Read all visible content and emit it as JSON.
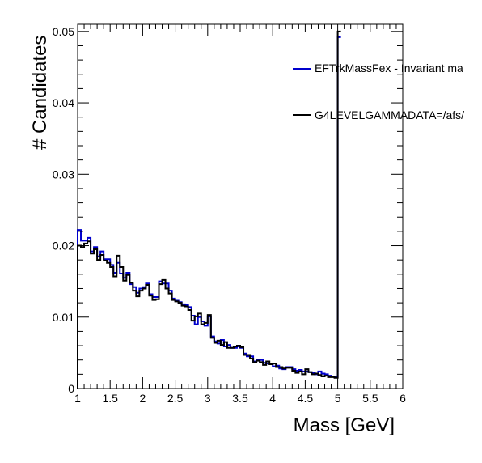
{
  "chart_data": {
    "type": "histogram-step",
    "xlabel": "Mass [GeV]",
    "ylabel": "# Candidates",
    "xlim": [
      1,
      6
    ],
    "ylim": [
      0,
      0.051
    ],
    "x_ticks": [
      "1",
      "1.5",
      "2",
      "2.5",
      "3",
      "3.5",
      "4",
      "4.5",
      "5",
      "5.5",
      "6"
    ],
    "y_ticks": [
      "0",
      "0.01",
      "0.02",
      "0.03",
      "0.04",
      "0.05"
    ],
    "bin_width": 0.05,
    "legend": [
      {
        "label": "EFTrkMassFex - Invariant ma",
        "color": "#0000cc"
      },
      {
        "label": "G4LEVELGAMMADATA=/afs/",
        "color": "#000000"
      }
    ],
    "series": [
      {
        "color": "#0000cc",
        "values": [
          0.0222,
          0.0207,
          0.0207,
          0.0211,
          0.0192,
          0.0198,
          0.0185,
          0.0192,
          0.0181,
          0.0181,
          0.0173,
          0.0162,
          0.0176,
          0.0161,
          0.0155,
          0.0162,
          0.0146,
          0.0142,
          0.0134,
          0.014,
          0.0142,
          0.0147,
          0.0132,
          0.0128,
          0.0128,
          0.015,
          0.0147,
          0.0147,
          0.0137,
          0.0126,
          0.0123,
          0.0121,
          0.0118,
          0.0117,
          0.0114,
          0.0102,
          0.009,
          0.01,
          0.0094,
          0.0088,
          0.0101,
          0.0073,
          0.0066,
          0.0063,
          0.0068,
          0.0059,
          0.0061,
          0.0057,
          0.0057,
          0.0059,
          0.0057,
          0.0049,
          0.0045,
          0.0045,
          0.0038,
          0.004,
          0.004,
          0.0036,
          0.0035,
          0.0035,
          0.0031,
          0.0032,
          0.0028,
          0.0027,
          0.003,
          0.003,
          0.0027,
          0.0025,
          0.0026,
          0.0024,
          0.0024,
          0.0023,
          0.0022,
          0.002,
          0.0024,
          0.0021,
          0.002,
          0.0018,
          0.0017,
          0.0016,
          0.0492
        ]
      },
      {
        "color": "#000000",
        "values": [
          0.02,
          0.0198,
          0.0203,
          0.0206,
          0.0189,
          0.0195,
          0.018,
          0.0187,
          0.0179,
          0.0176,
          0.017,
          0.0157,
          0.0186,
          0.017,
          0.0151,
          0.0159,
          0.0148,
          0.0137,
          0.0129,
          0.0137,
          0.014,
          0.0145,
          0.013,
          0.0124,
          0.0125,
          0.0146,
          0.0152,
          0.014,
          0.0133,
          0.0124,
          0.0122,
          0.012,
          0.0116,
          0.0115,
          0.011,
          0.0095,
          0.0101,
          0.0105,
          0.009,
          0.0092,
          0.0103,
          0.0071,
          0.0064,
          0.0067,
          0.0061,
          0.0065,
          0.0057,
          0.0057,
          0.0059,
          0.006,
          0.0058,
          0.0047,
          0.0047,
          0.0042,
          0.0037,
          0.0039,
          0.0037,
          0.0033,
          0.0038,
          0.0034,
          0.0035,
          0.003,
          0.003,
          0.0028,
          0.0029,
          0.0029,
          0.0025,
          0.0022,
          0.0024,
          0.002,
          0.0027,
          0.0023,
          0.002,
          0.0021,
          0.0019,
          0.0017,
          0.0018,
          0.0016,
          0.0016,
          0.0015,
          0.05
        ]
      }
    ]
  }
}
